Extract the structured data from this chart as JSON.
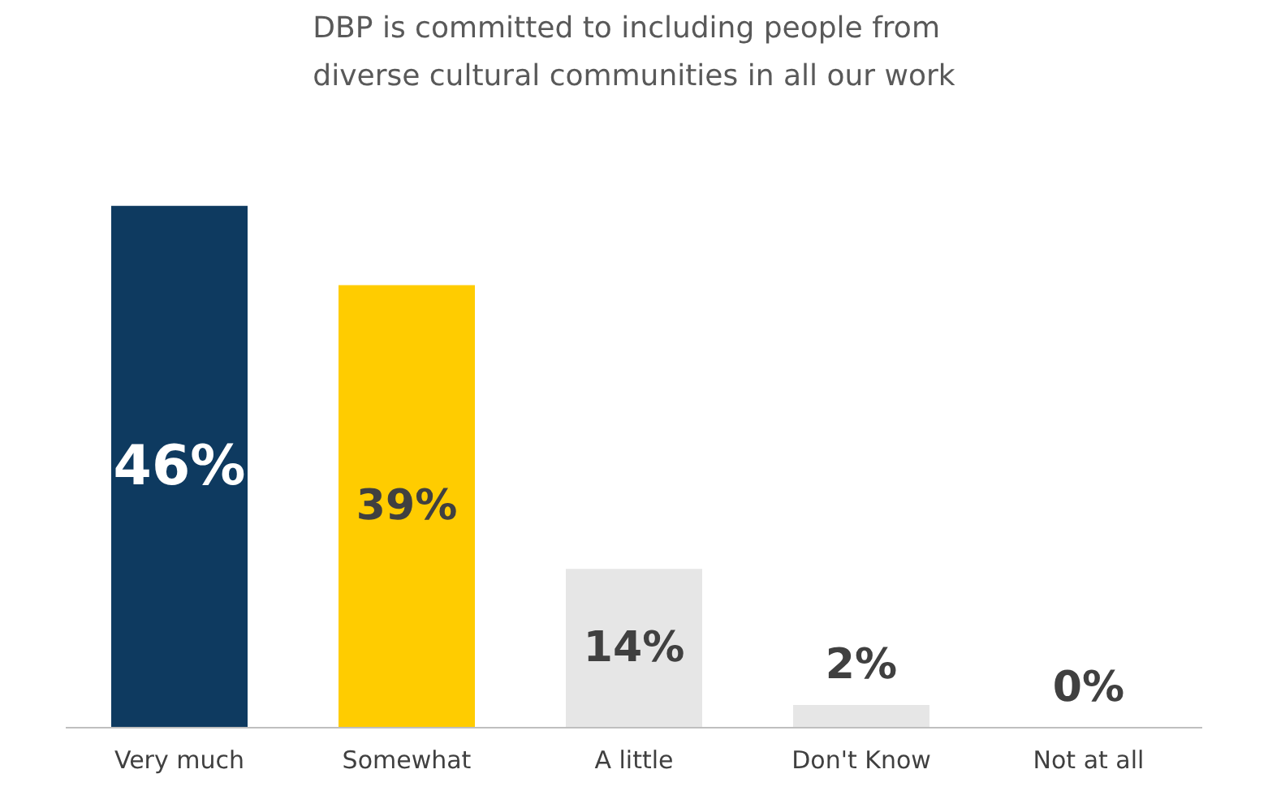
{
  "chart_data": {
    "type": "bar",
    "title": "DBP is committed to including people from\ndiverse cultural communities in all our work",
    "categories": [
      "Very much",
      "Somewhat",
      "A little",
      "Don't Know",
      "Not at all"
    ],
    "values": [
      46,
      39,
      14,
      2,
      0
    ],
    "colors": [
      "#0e3a60",
      "#ffcc00",
      "#e6e6e6",
      "#e6e6e6",
      "#e6e6e6"
    ],
    "value_labels": [
      "46%",
      "39%",
      "14%",
      "2%",
      "0%"
    ],
    "grid": false
  }
}
